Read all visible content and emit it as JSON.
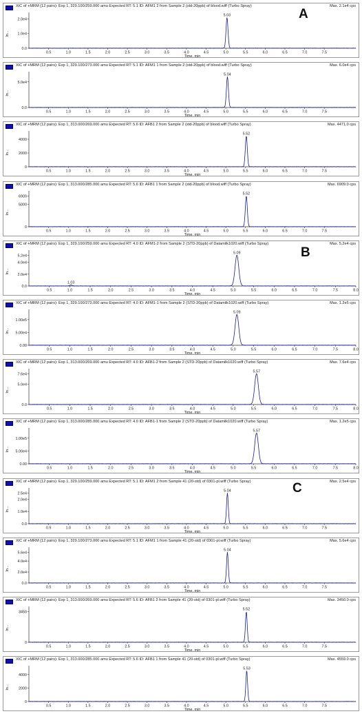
{
  "group_labels": [
    "A",
    "B",
    "C"
  ],
  "chart_data": [
    {
      "type": "line",
      "title": "XIC of +MRM (12 pairs): Exp 1, 329.100/259.000 amu Expected RT: 5.1 ID: AFM1 2 from Sample 2 (std-20ppb) of blood.wiff (Turbo Spray)",
      "max_label": "Max. 2.1e4 cps",
      "xlabel": "Time, min",
      "ylabel": "In...",
      "xlim": [
        0,
        8.3
      ],
      "xticks": [
        "0.5",
        "1.0",
        "1.5",
        "2.0",
        "2.5",
        "3.0",
        "3.5",
        "4.0",
        "4.5",
        "5.0",
        "5.5",
        "6.0",
        "6.5",
        "7.0",
        "7.5"
      ],
      "ylim": [
        0,
        21000
      ],
      "yticks": [
        {
          "label": "0.0",
          "value": 0
        },
        {
          "label": "1.0e4",
          "value": 10000
        },
        {
          "label": "2.0e4",
          "value": 20000
        }
      ],
      "peaks": [
        {
          "rt": 5.03,
          "height": 21000,
          "width": 0.025,
          "label": "5.03"
        }
      ]
    },
    {
      "type": "line",
      "title": "XIC of +MRM (12 pairs): Exp 1, 329.100/273.000 amu Expected RT: 5.1 ID: AFM1 1 from Sample 2 (std-20ppb) of blood.wiff (Turbo Spray)",
      "max_label": "Max. 6.0e4 cps",
      "xlabel": "Time, min",
      "ylabel": "In...",
      "xlim": [
        0,
        8.3
      ],
      "xticks": [
        "0.5",
        "1.0",
        "1.5",
        "2.0",
        "2.5",
        "3.0",
        "3.5",
        "4.0",
        "4.5",
        "5.0",
        "5.5",
        "6.0",
        "6.5",
        "7.0",
        "7.5"
      ],
      "ylim": [
        0,
        60000
      ],
      "yticks": [
        {
          "label": "0.0",
          "value": 0
        },
        {
          "label": "5.0e4",
          "value": 50000
        }
      ],
      "peaks": [
        {
          "rt": 5.04,
          "height": 60000,
          "width": 0.025,
          "label": "5.04"
        }
      ]
    },
    {
      "type": "line",
      "title": "XIC of +MRM (12 pairs): Exp 1, 313.000/269.000 amu Expected RT: 5.6 ID: AFB1 2 from Sample 2 (std-20ppb) of blood.wiff (Turbo Spray)",
      "max_label": "Max. 4471.0 cps",
      "xlabel": "Time, min",
      "ylabel": "In...",
      "xlim": [
        0,
        8.3
      ],
      "xticks": [
        "0.5",
        "1.0",
        "1.5",
        "2.0",
        "2.5",
        "3.0",
        "3.5",
        "4.0",
        "4.5",
        "5.0",
        "5.5",
        "6.0",
        "6.5",
        "7.0",
        "7.5"
      ],
      "ylim": [
        0,
        4471
      ],
      "yticks": [
        {
          "label": "0",
          "value": 0
        },
        {
          "label": "2000",
          "value": 2000
        },
        {
          "label": "4000",
          "value": 4000
        }
      ],
      "peaks": [
        {
          "rt": 5.52,
          "height": 4471,
          "width": 0.025,
          "label": "5.52"
        }
      ]
    },
    {
      "type": "line",
      "title": "XIC of +MRM (12 pairs): Exp 1, 313.000/285.000 amu Expected RT: 5.6 ID: AFB1 1 from Sample 2 (std-20ppb) of blood.wiff (Turbo Spray)",
      "max_label": "Max. 6909.0 cps",
      "xlabel": "Time, min",
      "ylabel": "In...",
      "xlim": [
        0,
        8.3
      ],
      "xticks": [
        "0.5",
        "1.0",
        "1.5",
        "2.0",
        "2.5",
        "3.0",
        "3.5",
        "4.0",
        "4.5",
        "5.0",
        "5.5",
        "6.0",
        "6.5",
        "7.0",
        "7.5"
      ],
      "ylim": [
        0,
        6909
      ],
      "yticks": [
        {
          "label": "0",
          "value": 0
        },
        {
          "label": "5000",
          "value": 5000
        },
        {
          "label": "6909",
          "value": 6909
        }
      ],
      "peaks": [
        {
          "rt": 5.52,
          "height": 6909,
          "width": 0.025,
          "label": "5.52"
        }
      ]
    },
    {
      "type": "line",
      "title": "XIC of +MRM (12 pairs): Exp 1, 329.100/259.000 amu Expected RT: 4.0 ID: AFM1-2 from Sample 2 (STD-20ppb) of Datamilk1020.wiff (Turbo Spray)",
      "max_label": "Max. 5.2e4 cps",
      "xlabel": "Time, min",
      "ylabel": "In...",
      "xlim": [
        0,
        8.0
      ],
      "xticks": [
        "0.5",
        "1.0",
        "1.5",
        "2.0",
        "2.5",
        "3.0",
        "3.5",
        "4.0",
        "4.5",
        "5.0",
        "5.5",
        "6.0",
        "6.5",
        "7.0",
        "7.5",
        "8.0"
      ],
      "ylim": [
        0,
        52000
      ],
      "yticks": [
        {
          "label": "0.0",
          "value": 0
        },
        {
          "label": "2.0e4",
          "value": 20000
        },
        {
          "label": "4.0e4",
          "value": 40000
        },
        {
          "label": "5.2e4",
          "value": 52000
        }
      ],
      "peaks": [
        {
          "rt": 5.09,
          "height": 52000,
          "width": 0.045,
          "label": "5.09"
        },
        {
          "rt": 1.03,
          "height": 1500,
          "width": 0.03,
          "label": "1.03"
        }
      ]
    },
    {
      "type": "line",
      "title": "XIC of +MRM (12 pairs): Exp 1, 329.100/273.000 amu Expected RT: 4.0 ID: AFM1-1 from Sample 2 (STD-20ppb) of Datamilk1020.wiff (Turbo Spray)",
      "max_label": "Max. 1.2e5 cps",
      "xlabel": "Time, min",
      "ylabel": "In...",
      "xlim": [
        0,
        8.0
      ],
      "xticks": [
        "0.5",
        "1.0",
        "1.5",
        "2.0",
        "2.5",
        "3.0",
        "3.5",
        "4.0",
        "4.5",
        "5.0",
        "5.5",
        "6.0",
        "6.5",
        "7.0",
        "7.5",
        "8.0"
      ],
      "ylim": [
        0,
        120000
      ],
      "yticks": [
        {
          "label": "0.00",
          "value": 0
        },
        {
          "label": "5.00e4",
          "value": 50000
        },
        {
          "label": "1.00e5",
          "value": 100000
        }
      ],
      "peaks": [
        {
          "rt": 5.09,
          "height": 120000,
          "width": 0.045,
          "label": "5.09"
        }
      ]
    },
    {
      "type": "line",
      "title": "XIC of +MRM (12 pairs): Exp 1, 313.000/269.000 amu Expected RT: 4.0 ID: AFB1-2 from Sample 2 (STD-20ppb) of Datamilk1020.wiff (Turbo Spray)",
      "max_label": "Max. 7.6e4 cps",
      "xlabel": "Time, min",
      "ylabel": "In...",
      "xlim": [
        0,
        8.0
      ],
      "xticks": [
        "0.5",
        "1.0",
        "1.5",
        "2.0",
        "2.5",
        "3.0",
        "3.5",
        "4.0",
        "4.5",
        "5.0",
        "5.5",
        "6.0",
        "6.5",
        "7.0",
        "7.5",
        "8.0"
      ],
      "ylim": [
        0,
        76000
      ],
      "yticks": [
        {
          "label": "0.0",
          "value": 0
        },
        {
          "label": "5.0e4",
          "value": 50000
        },
        {
          "label": "7.6e4",
          "value": 76000
        }
      ],
      "peaks": [
        {
          "rt": 5.57,
          "height": 76000,
          "width": 0.045,
          "label": "5.57"
        }
      ]
    },
    {
      "type": "line",
      "title": "XIC of +MRM (12 pairs): Exp 1, 313.000/285.000 amu Expected RT: 4.0 ID: AFB1-1 from Sample 2 (STD-20ppb) of Datamilk1020.wiff (Turbo Spray)",
      "max_label": "Max. 1.2e5 cps",
      "xlabel": "Time, min",
      "ylabel": "In...",
      "xlim": [
        0,
        8.0
      ],
      "xticks": [
        "0.5",
        "1.0",
        "1.5",
        "2.0",
        "2.5",
        "3.0",
        "3.5",
        "4.0",
        "4.5",
        "5.0",
        "5.5",
        "6.0",
        "6.5",
        "7.0",
        "7.5",
        "8.0"
      ],
      "ylim": [
        0,
        120000
      ],
      "yticks": [
        {
          "label": "0.00",
          "value": 0
        },
        {
          "label": "5.00e4",
          "value": 50000
        },
        {
          "label": "1.00e5",
          "value": 100000
        }
      ],
      "peaks": [
        {
          "rt": 5.57,
          "height": 120000,
          "width": 0.045,
          "label": "5.57"
        }
      ]
    },
    {
      "type": "line",
      "title": "XIC of +MRM (12 pairs): Exp 1, 329.100/259.000 amu Expected RT: 5.1 ID: AFM1 2 from Sample 41 (20-std) of 0301-pl.wiff (Turbo Spray)",
      "max_label": "Max. 2.5e4 cps",
      "xlabel": "Time, min",
      "ylabel": "In...",
      "xlim": [
        0,
        8.3
      ],
      "xticks": [
        "0.5",
        "1.0",
        "1.5",
        "2.0",
        "2.5",
        "3.0",
        "3.5",
        "4.0",
        "4.5",
        "5.0",
        "5.5",
        "6.0",
        "6.5",
        "7.0",
        "7.5"
      ],
      "ylim": [
        0,
        25000
      ],
      "yticks": [
        {
          "label": "0.0",
          "value": 0
        },
        {
          "label": "1.0e4",
          "value": 10000
        },
        {
          "label": "2.0e4",
          "value": 20000
        },
        {
          "label": "2.5e4",
          "value": 25000
        }
      ],
      "peaks": [
        {
          "rt": 5.04,
          "height": 25000,
          "width": 0.022,
          "label": "5.04"
        }
      ]
    },
    {
      "type": "line",
      "title": "XIC of +MRM (12 pairs): Exp 1, 329.100/273.000 amu Expected RT: 5.1 ID: AFM1 1 from Sample 41 (20-std) of 0301-pl.wiff (Turbo Spray)",
      "max_label": "Max. 5.6e4 cps",
      "xlabel": "Time, min",
      "ylabel": "In...",
      "xlim": [
        0,
        8.3
      ],
      "xticks": [
        "0.5",
        "1.0",
        "1.5",
        "2.0",
        "2.5",
        "3.0",
        "3.5",
        "4.0",
        "4.5",
        "5.0",
        "5.5",
        "6.0",
        "6.5",
        "7.0",
        "7.5"
      ],
      "ylim": [
        0,
        56000
      ],
      "yticks": [
        {
          "label": "0.0",
          "value": 0
        },
        {
          "label": "2.0e4",
          "value": 20000
        },
        {
          "label": "4.0e4",
          "value": 40000
        },
        {
          "label": "5.6e4",
          "value": 56000
        }
      ],
      "peaks": [
        {
          "rt": 5.04,
          "height": 56000,
          "width": 0.022,
          "label": "5.04"
        }
      ]
    },
    {
      "type": "line",
      "title": "XIC of +MRM (12 pairs): Exp 1, 313.000/269.000 amu Expected RT: 5.6 ID: AFB1 2 from Sample 41 (20-std) of 0301-pl.wiff (Turbo Spray)",
      "max_label": "Max. 3450.0 cps",
      "xlabel": "Time, min",
      "ylabel": "In...",
      "xlim": [
        0,
        8.3
      ],
      "xticks": [
        "0.5",
        "1.0",
        "1.5",
        "2.0",
        "2.5",
        "3.0",
        "3.5",
        "4.0",
        "4.5",
        "5.0",
        "5.5",
        "6.0",
        "6.5",
        "7.0",
        "7.5"
      ],
      "ylim": [
        0,
        3450
      ],
      "yticks": [
        {
          "label": "0",
          "value": 0
        },
        {
          "label": "3450",
          "value": 3450
        }
      ],
      "peaks": [
        {
          "rt": 5.52,
          "height": 3450,
          "width": 0.022,
          "label": "5.52"
        }
      ]
    },
    {
      "type": "line",
      "title": "XIC of +MRM (12 pairs): Exp 1, 313.000/285.000 amu Expected RT: 5.6 ID: AFB1 1 from Sample 41 (20-std) of 0301-pl.wiff (Turbo Spray)",
      "max_label": "Max. 4559.0 cps",
      "xlabel": "Time, min",
      "ylabel": "In...",
      "xlim": [
        0,
        8.3
      ],
      "xticks": [
        "0.5",
        "1.0",
        "1.5",
        "2.0",
        "2.5",
        "3.0",
        "3.5",
        "4.0",
        "4.5",
        "5.0",
        "5.5",
        "6.0",
        "6.5",
        "7.0",
        "7.5"
      ],
      "ylim": [
        0,
        4559
      ],
      "yticks": [
        {
          "label": "0",
          "value": 0
        },
        {
          "label": "2000",
          "value": 2000
        },
        {
          "label": "4000",
          "value": 4000
        }
      ],
      "peaks": [
        {
          "rt": 5.53,
          "height": 4559,
          "width": 0.022,
          "label": "5.53"
        }
      ]
    }
  ]
}
